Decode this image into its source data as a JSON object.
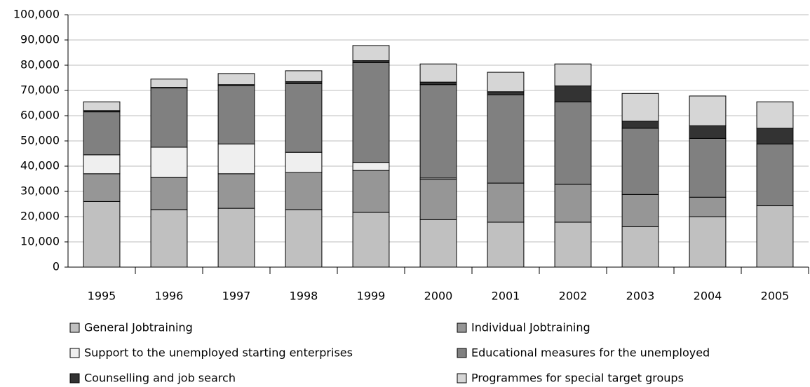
{
  "chart_data": {
    "type": "stacked_bar",
    "categories": [
      "1995",
      "1996",
      "1997",
      "1998",
      "1999",
      "2000",
      "2001",
      "2002",
      "2003",
      "2004",
      "2005"
    ],
    "series": [
      {
        "name": "General Jobtraining",
        "color": "#c0c0c0",
        "values": [
          26000,
          22800,
          23300,
          22800,
          21700,
          18800,
          17800,
          17800,
          16000,
          20000,
          24300
        ]
      },
      {
        "name": "Individual Jobtraining",
        "color": "#969696",
        "values": [
          11000,
          12700,
          13700,
          14700,
          16600,
          16000,
          15500,
          15000,
          12800,
          7700,
          0
        ]
      },
      {
        "name": "Support to the unemployed starting enterprises",
        "color": "#efefef",
        "values": [
          7500,
          12000,
          11800,
          8000,
          3200,
          500,
          0,
          0,
          0,
          0,
          0
        ]
      },
      {
        "name": "Educational  measures for the unemployed",
        "color": "#808080",
        "values": [
          17000,
          23500,
          23200,
          27200,
          39500,
          37000,
          35000,
          32700,
          26200,
          23300,
          24500
        ]
      },
      {
        "name": "Counselling and job search",
        "color": "#333333",
        "values": [
          500,
          200,
          300,
          800,
          800,
          1000,
          1200,
          6300,
          2800,
          5000,
          6200
        ]
      },
      {
        "name": "Programmes for special target groups",
        "color": "#d6d6d6",
        "values": [
          3500,
          3300,
          4400,
          4300,
          6000,
          7200,
          7700,
          8700,
          11000,
          11800,
          10500
        ]
      }
    ],
    "ylim": [
      0,
      100000
    ],
    "yticks": [
      0,
      {
        "value": 10000,
        "label": "10,000"
      },
      {
        "value": 20000,
        "label": "20,000"
      },
      {
        "value": 30000,
        "label": "30,000"
      },
      {
        "value": 40000,
        "label": "40,000"
      },
      {
        "value": 50000,
        "label": "50,000"
      },
      {
        "value": 60000,
        "label": "60,000"
      },
      {
        "value": 70000,
        "label": "70,000"
      },
      {
        "value": 80000,
        "label": "80,000"
      },
      {
        "value": 90000,
        "label": "90,000"
      },
      {
        "value": 100000,
        "label": "100,000"
      }
    ],
    "grid": true
  }
}
